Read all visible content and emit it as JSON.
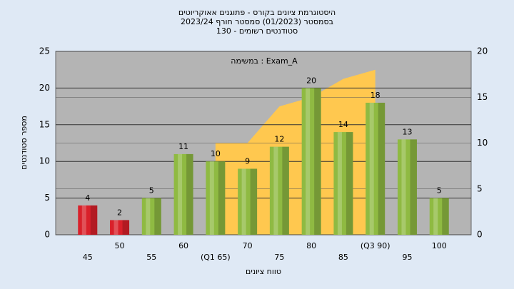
{
  "chart_data": {
    "type": "bar",
    "title": [
      "היסטוגרמת ציונים בקורס - פתוגנים אאוקריוטים",
      "בסמסטר (01/2023) סמסטר חורף 2023/24",
      "סטודנטים רשומים - 130"
    ],
    "annotation": "במשימה : Exam_A",
    "ylabel": "מספר סטודנטים",
    "xlabel": "טווח ציונים",
    "categories": [
      "45",
      "50",
      "55",
      "60",
      "(Q1 65)",
      "70",
      "75",
      "80",
      "85",
      "(Q3 90)",
      "95",
      "100"
    ],
    "values": [
      4,
      2,
      5,
      11,
      10,
      9,
      12,
      20,
      14,
      18,
      13,
      5
    ],
    "colors": [
      "#d9202a",
      "#d9202a",
      "#8fba42",
      "#8fba42",
      "#8fba42",
      "#8fba42",
      "#8fba42",
      "#8fba42",
      "#8fba42",
      "#8fba42",
      "#8fba42",
      "#8fba42"
    ],
    "area": {
      "values": [
        null,
        null,
        null,
        null,
        10,
        10,
        14,
        15,
        17,
        18,
        null,
        null
      ],
      "color": "#ffc84f",
      "axis": "y2"
    },
    "ylim": [
      0,
      25
    ],
    "yticks": [
      0,
      5,
      10,
      15,
      20,
      25
    ],
    "y2lim": [
      0,
      20
    ],
    "y2ticks": [
      0,
      5,
      10,
      15,
      20
    ],
    "grid": true
  }
}
